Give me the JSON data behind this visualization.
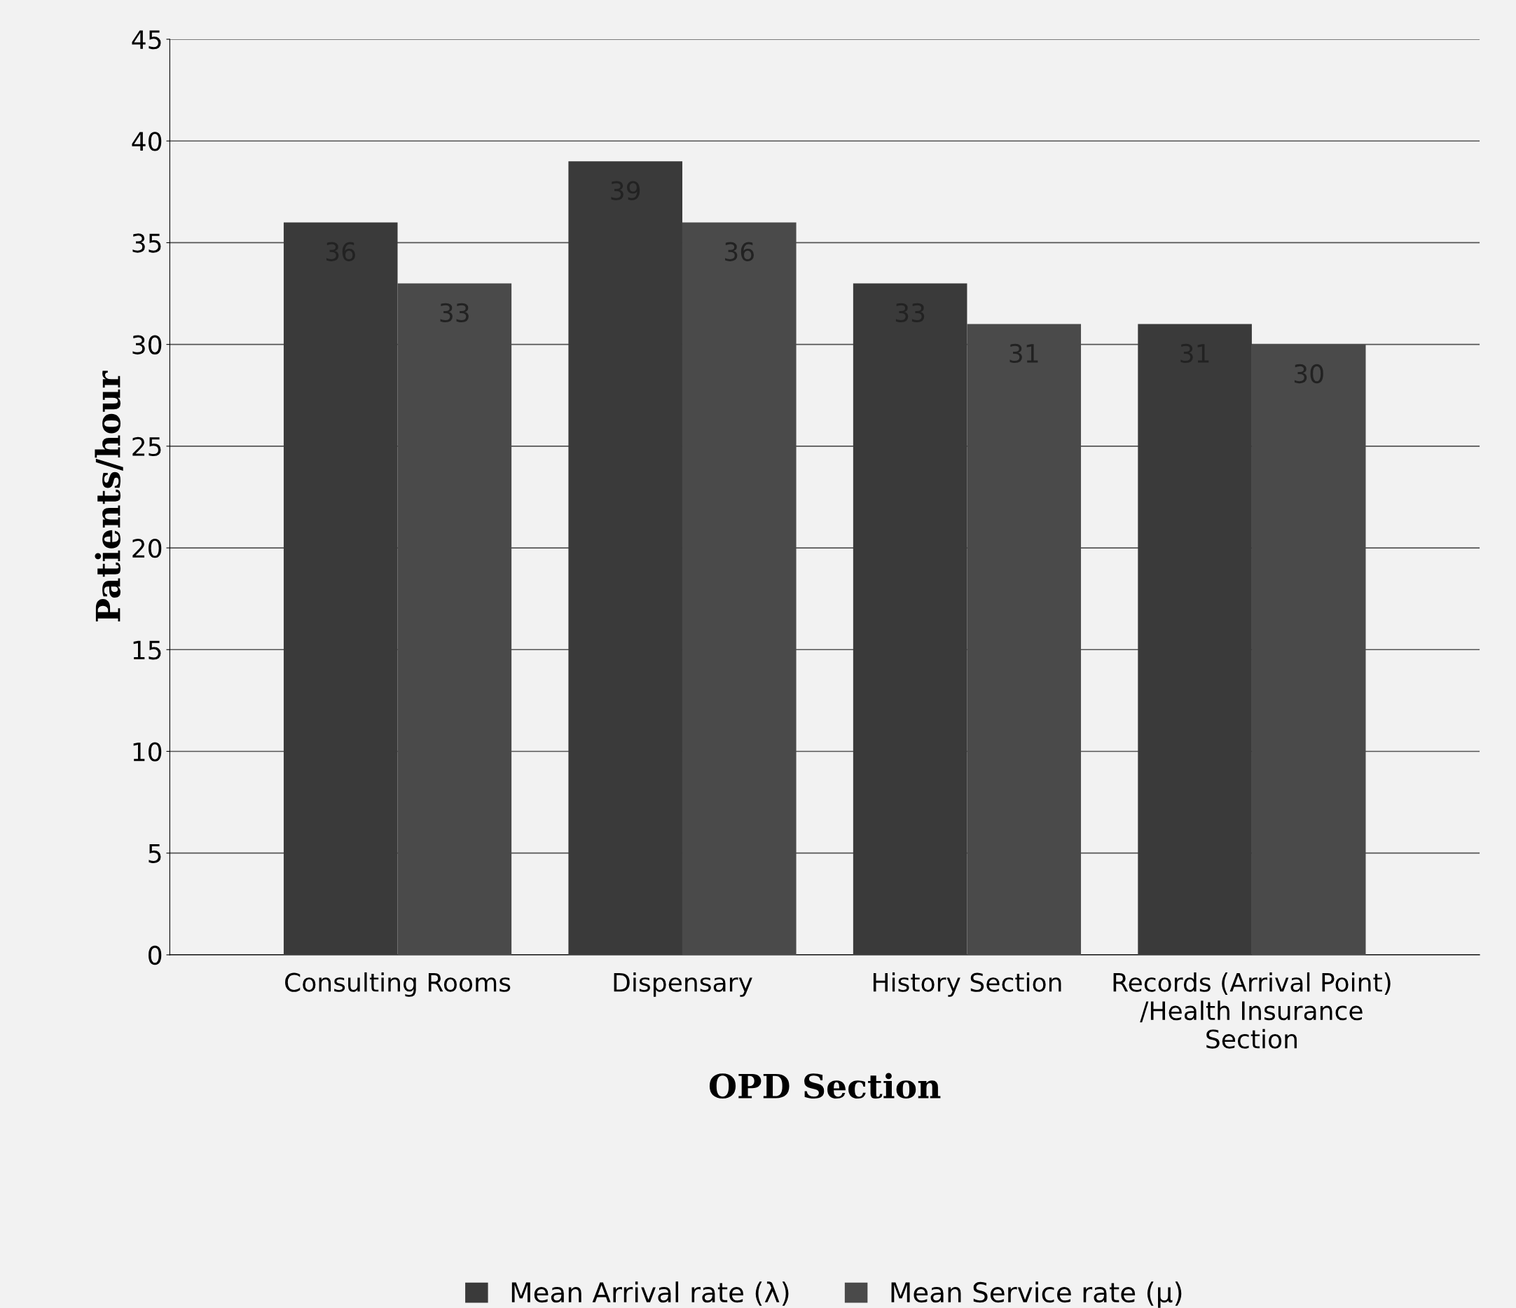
{
  "chart_data": {
    "type": "bar",
    "xlabel": "OPD Section",
    "ylabel": "Patients/hour",
    "categories": [
      "Consulting Rooms",
      "Dispensary",
      "History Section",
      "Records (Arrival Point)\n/Health Insurance\nSection"
    ],
    "series": [
      {
        "name": "Mean Arrival rate (λ)",
        "color": "#3a3a3a",
        "values": [
          36,
          39,
          33,
          31
        ]
      },
      {
        "name": "Mean Service rate (μ)",
        "color": "#4a4a4a",
        "values": [
          33,
          36,
          31,
          30
        ]
      }
    ],
    "ylim": [
      0,
      45
    ],
    "yticks": [
      0,
      5,
      10,
      15,
      20,
      25,
      30,
      35,
      40,
      45
    ],
    "grid": "y",
    "legend": "bottom",
    "data_labels": true
  }
}
